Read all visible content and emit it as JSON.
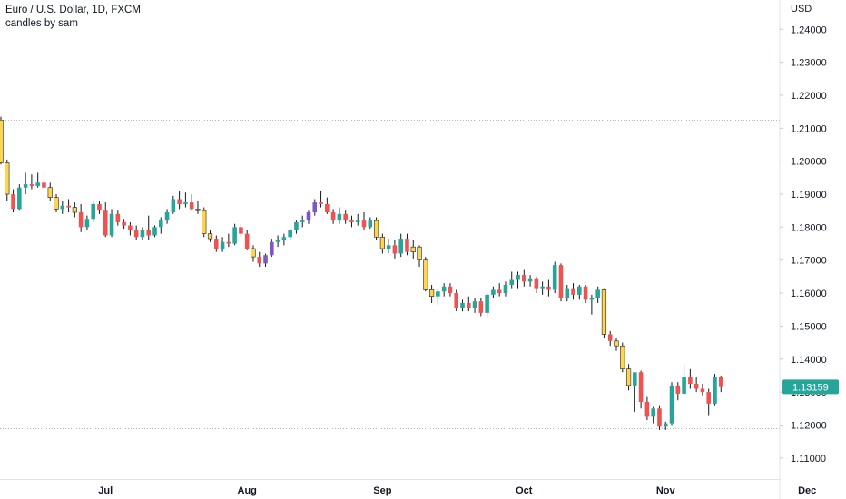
{
  "header": {
    "symbol_line": "Euro / U.S. Dollar, 1D, FXCM",
    "indicator_line": "candles by sam"
  },
  "price_axis": {
    "currency": "USD",
    "ticks": [
      "1.24000",
      "1.23000",
      "1.22000",
      "1.21000",
      "1.20000",
      "1.19000",
      "1.18000",
      "1.17000",
      "1.16000",
      "1.15000",
      "1.14000",
      "1.13000",
      "1.12000",
      "1.11000"
    ],
    "last_price_label": "1.13159",
    "last_price": 1.13159
  },
  "colors": {
    "bull": "#26a69a",
    "bear": "#ef5350",
    "yellow": "#ffd54f",
    "purple": "#7e57c2",
    "wick": "#131722",
    "grid_dotted": "#b2b5be",
    "axis_border": "#e0e3eb",
    "price_tag": "#26a69a"
  },
  "chart_data": {
    "type": "candlestick",
    "instrument": "Euro / U.S. Dollar",
    "timeframe": "1D",
    "source": "FXCM",
    "ylim": [
      1.105,
      1.2475
    ],
    "x_month_labels": [
      {
        "label": "Jul",
        "index": 17
      },
      {
        "label": "Aug",
        "index": 40
      },
      {
        "label": "Sep",
        "index": 62
      },
      {
        "label": "Oct",
        "index": 85
      },
      {
        "label": "Nov",
        "index": 108
      },
      {
        "label": "Dec",
        "index": 131
      }
    ],
    "horizontal_levels": [
      1.2125,
      1.1675,
      1.119
    ],
    "candles": [
      {
        "o": 1.2125,
        "h": 1.2135,
        "l": 1.199,
        "c": 1.1995,
        "k": "y"
      },
      {
        "o": 1.1995,
        "h": 1.2005,
        "l": 1.188,
        "c": 1.19,
        "k": "y"
      },
      {
        "o": 1.19,
        "h": 1.1915,
        "l": 1.1845,
        "c": 1.1855,
        "k": "r"
      },
      {
        "o": 1.1855,
        "h": 1.193,
        "l": 1.185,
        "c": 1.192,
        "k": "g"
      },
      {
        "o": 1.192,
        "h": 1.1965,
        "l": 1.19,
        "c": 1.193,
        "k": "g"
      },
      {
        "o": 1.193,
        "h": 1.196,
        "l": 1.1915,
        "c": 1.1925,
        "k": "r"
      },
      {
        "o": 1.1925,
        "h": 1.1965,
        "l": 1.192,
        "c": 1.1935,
        "k": "g"
      },
      {
        "o": 1.1935,
        "h": 1.197,
        "l": 1.191,
        "c": 1.192,
        "k": "r"
      },
      {
        "o": 1.192,
        "h": 1.1935,
        "l": 1.188,
        "c": 1.189,
        "k": "y"
      },
      {
        "o": 1.189,
        "h": 1.19,
        "l": 1.1845,
        "c": 1.1855,
        "k": "y"
      },
      {
        "o": 1.1855,
        "h": 1.188,
        "l": 1.184,
        "c": 1.1865,
        "k": "g"
      },
      {
        "o": 1.1865,
        "h": 1.1885,
        "l": 1.1845,
        "c": 1.186,
        "k": "r"
      },
      {
        "o": 1.186,
        "h": 1.1875,
        "l": 1.183,
        "c": 1.1845,
        "k": "y"
      },
      {
        "o": 1.1845,
        "h": 1.187,
        "l": 1.1785,
        "c": 1.18,
        "k": "r"
      },
      {
        "o": 1.18,
        "h": 1.1835,
        "l": 1.179,
        "c": 1.1825,
        "k": "g"
      },
      {
        "o": 1.1825,
        "h": 1.188,
        "l": 1.1815,
        "c": 1.187,
        "k": "g"
      },
      {
        "o": 1.187,
        "h": 1.188,
        "l": 1.184,
        "c": 1.185,
        "k": "r"
      },
      {
        "o": 1.185,
        "h": 1.1875,
        "l": 1.177,
        "c": 1.1775,
        "k": "r"
      },
      {
        "o": 1.1775,
        "h": 1.1855,
        "l": 1.177,
        "c": 1.184,
        "k": "g"
      },
      {
        "o": 1.184,
        "h": 1.185,
        "l": 1.1805,
        "c": 1.1815,
        "k": "r"
      },
      {
        "o": 1.1815,
        "h": 1.1825,
        "l": 1.1795,
        "c": 1.1805,
        "k": "r"
      },
      {
        "o": 1.1805,
        "h": 1.1815,
        "l": 1.1775,
        "c": 1.179,
        "k": "r"
      },
      {
        "o": 1.179,
        "h": 1.1805,
        "l": 1.176,
        "c": 1.177,
        "k": "r"
      },
      {
        "o": 1.177,
        "h": 1.18,
        "l": 1.176,
        "c": 1.179,
        "k": "g"
      },
      {
        "o": 1.179,
        "h": 1.1835,
        "l": 1.176,
        "c": 1.1775,
        "k": "r"
      },
      {
        "o": 1.1775,
        "h": 1.1805,
        "l": 1.177,
        "c": 1.18,
        "k": "g"
      },
      {
        "o": 1.18,
        "h": 1.183,
        "l": 1.178,
        "c": 1.182,
        "k": "g"
      },
      {
        "o": 1.182,
        "h": 1.1855,
        "l": 1.181,
        "c": 1.1845,
        "k": "g"
      },
      {
        "o": 1.1845,
        "h": 1.1895,
        "l": 1.184,
        "c": 1.1885,
        "k": "g"
      },
      {
        "o": 1.1885,
        "h": 1.191,
        "l": 1.1855,
        "c": 1.187,
        "k": "r"
      },
      {
        "o": 1.187,
        "h": 1.1905,
        "l": 1.186,
        "c": 1.1875,
        "k": "g"
      },
      {
        "o": 1.1875,
        "h": 1.19,
        "l": 1.185,
        "c": 1.1855,
        "k": "r"
      },
      {
        "o": 1.1855,
        "h": 1.188,
        "l": 1.184,
        "c": 1.185,
        "k": "y"
      },
      {
        "o": 1.185,
        "h": 1.186,
        "l": 1.177,
        "c": 1.178,
        "k": "y"
      },
      {
        "o": 1.178,
        "h": 1.179,
        "l": 1.1755,
        "c": 1.1765,
        "k": "y"
      },
      {
        "o": 1.1765,
        "h": 1.1775,
        "l": 1.1725,
        "c": 1.1735,
        "k": "r"
      },
      {
        "o": 1.1735,
        "h": 1.177,
        "l": 1.1725,
        "c": 1.1755,
        "k": "g"
      },
      {
        "o": 1.1755,
        "h": 1.178,
        "l": 1.174,
        "c": 1.175,
        "k": "r"
      },
      {
        "o": 1.175,
        "h": 1.181,
        "l": 1.1745,
        "c": 1.18,
        "k": "g"
      },
      {
        "o": 1.18,
        "h": 1.181,
        "l": 1.177,
        "c": 1.178,
        "k": "r"
      },
      {
        "o": 1.178,
        "h": 1.179,
        "l": 1.173,
        "c": 1.1735,
        "k": "r"
      },
      {
        "o": 1.1735,
        "h": 1.1745,
        "l": 1.1695,
        "c": 1.171,
        "k": "y"
      },
      {
        "o": 1.171,
        "h": 1.1725,
        "l": 1.168,
        "c": 1.169,
        "k": "r"
      },
      {
        "o": 1.169,
        "h": 1.172,
        "l": 1.168,
        "c": 1.1715,
        "k": "p"
      },
      {
        "o": 1.1715,
        "h": 1.1765,
        "l": 1.171,
        "c": 1.1755,
        "k": "p"
      },
      {
        "o": 1.1755,
        "h": 1.1775,
        "l": 1.174,
        "c": 1.176,
        "k": "g"
      },
      {
        "o": 1.176,
        "h": 1.178,
        "l": 1.1745,
        "c": 1.177,
        "k": "g"
      },
      {
        "o": 1.177,
        "h": 1.1795,
        "l": 1.176,
        "c": 1.179,
        "k": "g"
      },
      {
        "o": 1.179,
        "h": 1.182,
        "l": 1.178,
        "c": 1.1815,
        "k": "g"
      },
      {
        "o": 1.1815,
        "h": 1.1835,
        "l": 1.18,
        "c": 1.182,
        "k": "g"
      },
      {
        "o": 1.182,
        "h": 1.185,
        "l": 1.181,
        "c": 1.1845,
        "k": "p"
      },
      {
        "o": 1.1845,
        "h": 1.1885,
        "l": 1.1835,
        "c": 1.1875,
        "k": "p"
      },
      {
        "o": 1.1875,
        "h": 1.191,
        "l": 1.186,
        "c": 1.187,
        "k": "r"
      },
      {
        "o": 1.187,
        "h": 1.189,
        "l": 1.184,
        "c": 1.1845,
        "k": "r"
      },
      {
        "o": 1.1845,
        "h": 1.1855,
        "l": 1.181,
        "c": 1.182,
        "k": "r"
      },
      {
        "o": 1.182,
        "h": 1.186,
        "l": 1.181,
        "c": 1.184,
        "k": "g"
      },
      {
        "o": 1.184,
        "h": 1.185,
        "l": 1.181,
        "c": 1.182,
        "k": "r"
      },
      {
        "o": 1.182,
        "h": 1.1835,
        "l": 1.18,
        "c": 1.1815,
        "k": "r"
      },
      {
        "o": 1.1815,
        "h": 1.184,
        "l": 1.1805,
        "c": 1.182,
        "k": "g"
      },
      {
        "o": 1.182,
        "h": 1.1845,
        "l": 1.179,
        "c": 1.18,
        "k": "r"
      },
      {
        "o": 1.18,
        "h": 1.183,
        "l": 1.1795,
        "c": 1.182,
        "k": "g"
      },
      {
        "o": 1.182,
        "h": 1.183,
        "l": 1.176,
        "c": 1.177,
        "k": "y"
      },
      {
        "o": 1.177,
        "h": 1.178,
        "l": 1.172,
        "c": 1.1735,
        "k": "y"
      },
      {
        "o": 1.1735,
        "h": 1.1765,
        "l": 1.172,
        "c": 1.1745,
        "k": "g"
      },
      {
        "o": 1.1745,
        "h": 1.176,
        "l": 1.1705,
        "c": 1.172,
        "k": "r"
      },
      {
        "o": 1.172,
        "h": 1.178,
        "l": 1.171,
        "c": 1.1765,
        "k": "g"
      },
      {
        "o": 1.1765,
        "h": 1.178,
        "l": 1.1715,
        "c": 1.1725,
        "k": "r"
      },
      {
        "o": 1.1725,
        "h": 1.176,
        "l": 1.1705,
        "c": 1.174,
        "k": "y"
      },
      {
        "o": 1.174,
        "h": 1.1745,
        "l": 1.168,
        "c": 1.17,
        "k": "y"
      },
      {
        "o": 1.17,
        "h": 1.171,
        "l": 1.1605,
        "c": 1.161,
        "k": "y"
      },
      {
        "o": 1.161,
        "h": 1.1625,
        "l": 1.157,
        "c": 1.159,
        "k": "y"
      },
      {
        "o": 1.159,
        "h": 1.1615,
        "l": 1.1565,
        "c": 1.1605,
        "k": "g"
      },
      {
        "o": 1.1605,
        "h": 1.163,
        "l": 1.159,
        "c": 1.162,
        "k": "g"
      },
      {
        "o": 1.162,
        "h": 1.163,
        "l": 1.159,
        "c": 1.16,
        "k": "r"
      },
      {
        "o": 1.16,
        "h": 1.161,
        "l": 1.1545,
        "c": 1.1555,
        "k": "r"
      },
      {
        "o": 1.1555,
        "h": 1.158,
        "l": 1.1545,
        "c": 1.157,
        "k": "g"
      },
      {
        "o": 1.157,
        "h": 1.159,
        "l": 1.1545,
        "c": 1.1555,
        "k": "r"
      },
      {
        "o": 1.1555,
        "h": 1.1585,
        "l": 1.154,
        "c": 1.1575,
        "k": "g"
      },
      {
        "o": 1.1575,
        "h": 1.1585,
        "l": 1.153,
        "c": 1.154,
        "k": "r"
      },
      {
        "o": 1.154,
        "h": 1.16,
        "l": 1.153,
        "c": 1.1595,
        "k": "g"
      },
      {
        "o": 1.1595,
        "h": 1.162,
        "l": 1.1585,
        "c": 1.161,
        "k": "g"
      },
      {
        "o": 1.161,
        "h": 1.163,
        "l": 1.159,
        "c": 1.16,
        "k": "r"
      },
      {
        "o": 1.16,
        "h": 1.1635,
        "l": 1.159,
        "c": 1.1625,
        "k": "g"
      },
      {
        "o": 1.1625,
        "h": 1.1665,
        "l": 1.1615,
        "c": 1.164,
        "k": "g"
      },
      {
        "o": 1.164,
        "h": 1.1665,
        "l": 1.1615,
        "c": 1.1655,
        "k": "g"
      },
      {
        "o": 1.1655,
        "h": 1.167,
        "l": 1.162,
        "c": 1.1635,
        "k": "r"
      },
      {
        "o": 1.1635,
        "h": 1.1655,
        "l": 1.162,
        "c": 1.1645,
        "k": "g"
      },
      {
        "o": 1.1645,
        "h": 1.165,
        "l": 1.16,
        "c": 1.1615,
        "k": "r"
      },
      {
        "o": 1.1615,
        "h": 1.1635,
        "l": 1.1595,
        "c": 1.162,
        "k": "g"
      },
      {
        "o": 1.162,
        "h": 1.164,
        "l": 1.159,
        "c": 1.161,
        "k": "r"
      },
      {
        "o": 1.161,
        "h": 1.1695,
        "l": 1.16,
        "c": 1.1685,
        "k": "g"
      },
      {
        "o": 1.1685,
        "h": 1.169,
        "l": 1.1575,
        "c": 1.1585,
        "k": "r"
      },
      {
        "o": 1.1585,
        "h": 1.1625,
        "l": 1.1575,
        "c": 1.1615,
        "k": "g"
      },
      {
        "o": 1.1615,
        "h": 1.163,
        "l": 1.158,
        "c": 1.1595,
        "k": "r"
      },
      {
        "o": 1.1595,
        "h": 1.1625,
        "l": 1.158,
        "c": 1.162,
        "k": "g"
      },
      {
        "o": 1.162,
        "h": 1.1625,
        "l": 1.157,
        "c": 1.158,
        "k": "r"
      },
      {
        "o": 1.158,
        "h": 1.1595,
        "l": 1.1535,
        "c": 1.1585,
        "k": "g"
      },
      {
        "o": 1.1585,
        "h": 1.162,
        "l": 1.157,
        "c": 1.161,
        "k": "g"
      },
      {
        "o": 1.161,
        "h": 1.1615,
        "l": 1.1465,
        "c": 1.1475,
        "k": "y"
      },
      {
        "o": 1.1475,
        "h": 1.1485,
        "l": 1.144,
        "c": 1.1455,
        "k": "r"
      },
      {
        "o": 1.1455,
        "h": 1.1465,
        "l": 1.1425,
        "c": 1.144,
        "k": "y"
      },
      {
        "o": 1.144,
        "h": 1.145,
        "l": 1.136,
        "c": 1.137,
        "k": "y"
      },
      {
        "o": 1.137,
        "h": 1.1385,
        "l": 1.1305,
        "c": 1.132,
        "k": "y"
      },
      {
        "o": 1.132,
        "h": 1.1355,
        "l": 1.124,
        "c": 1.136,
        "k": "g"
      },
      {
        "o": 1.136,
        "h": 1.1365,
        "l": 1.125,
        "c": 1.127,
        "k": "r"
      },
      {
        "o": 1.127,
        "h": 1.1285,
        "l": 1.1215,
        "c": 1.1225,
        "k": "r"
      },
      {
        "o": 1.1225,
        "h": 1.1255,
        "l": 1.1205,
        "c": 1.125,
        "k": "g"
      },
      {
        "o": 1.125,
        "h": 1.126,
        "l": 1.1185,
        "c": 1.1195,
        "k": "r"
      },
      {
        "o": 1.1195,
        "h": 1.121,
        "l": 1.1185,
        "c": 1.1205,
        "k": "g"
      },
      {
        "o": 1.1205,
        "h": 1.133,
        "l": 1.12,
        "c": 1.132,
        "k": "g"
      },
      {
        "o": 1.132,
        "h": 1.133,
        "l": 1.1275,
        "c": 1.1295,
        "k": "r"
      },
      {
        "o": 1.1295,
        "h": 1.1385,
        "l": 1.129,
        "c": 1.1345,
        "k": "g"
      },
      {
        "o": 1.1345,
        "h": 1.137,
        "l": 1.131,
        "c": 1.1325,
        "k": "r"
      },
      {
        "o": 1.1325,
        "h": 1.1345,
        "l": 1.13,
        "c": 1.131,
        "k": "r"
      },
      {
        "o": 1.131,
        "h": 1.1325,
        "l": 1.129,
        "c": 1.13,
        "k": "r"
      },
      {
        "o": 1.13,
        "h": 1.131,
        "l": 1.123,
        "c": 1.1265,
        "k": "r"
      },
      {
        "o": 1.1265,
        "h": 1.1355,
        "l": 1.126,
        "c": 1.1345,
        "k": "g"
      },
      {
        "o": 1.1345,
        "h": 1.135,
        "l": 1.13,
        "c": 1.1315,
        "k": "r"
      }
    ]
  }
}
